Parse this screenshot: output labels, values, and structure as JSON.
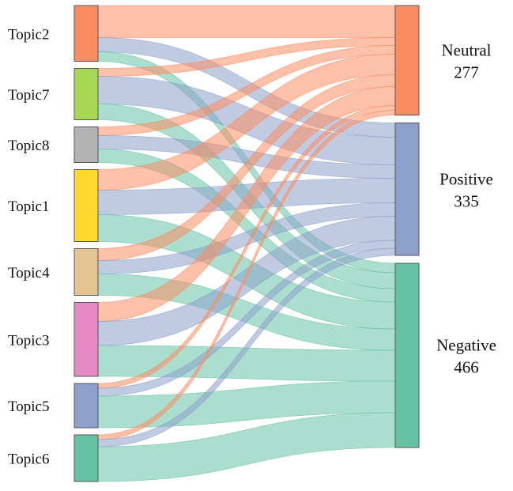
{
  "chart_data": {
    "type": "sankey",
    "sources": [
      {
        "name": "Topic2",
        "color": "#FC8D62"
      },
      {
        "name": "Topic7",
        "color": "#A6D854"
      },
      {
        "name": "Topic8",
        "color": "#B3B3B3"
      },
      {
        "name": "Topic1",
        "color": "#FFD92F"
      },
      {
        "name": "Topic4",
        "color": "#E5C494"
      },
      {
        "name": "Topic3",
        "color": "#E78AC3"
      },
      {
        "name": "Topic5",
        "color": "#8DA0CB"
      },
      {
        "name": "Topic6",
        "color": "#66C2A5"
      }
    ],
    "targets": [
      {
        "name": "Neutral",
        "value_label": "277",
        "color": "#FC8D62"
      },
      {
        "name": "Positive",
        "value_label": "335",
        "color": "#8DA0CB"
      },
      {
        "name": "Negative",
        "value_label": "466",
        "color": "#66C2A5"
      }
    ],
    "flows": {
      "Topic2": [
        81,
        36,
        24
      ],
      "Topic7": [
        20,
        70,
        40
      ],
      "Topic8": [
        22,
        34,
        34
      ],
      "Topic1": [
        52,
        62,
        68
      ],
      "Topic4": [
        30,
        34,
        54
      ],
      "Topic3": [
        48,
        61,
        78
      ],
      "Topic5": [
        12,
        20,
        80
      ],
      "Topic6": [
        12,
        18,
        88
      ]
    }
  }
}
